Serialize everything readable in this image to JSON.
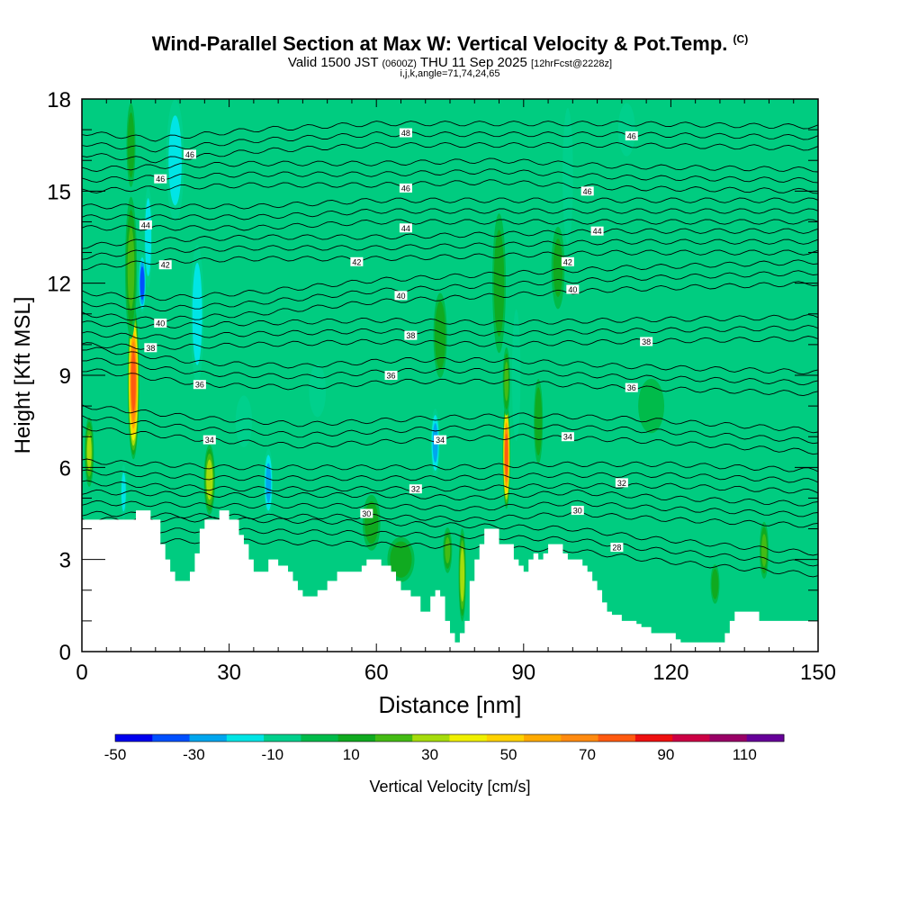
{
  "header": {
    "title": "Wind-Parallel Section at Max W: Vertical Velocity & Pot.Temp.",
    "copyright": "(C)",
    "valid_prefix": "Valid 1500 JST",
    "valid_utc": "(0600Z)",
    "valid_date": "THU 11 Sep 2025",
    "forecast": "[12hrFcst@2228z]",
    "indices": "i,j,k,angle=71,74,24,65"
  },
  "chart_data": {
    "type": "heatmap",
    "xlabel": "Distance [nm]",
    "ylabel": "Height [Kft MSL]",
    "xlim": [
      0,
      150
    ],
    "ylim": [
      0,
      18
    ],
    "x_ticks": [
      0,
      30,
      60,
      90,
      120,
      150
    ],
    "y_ticks": [
      0,
      3,
      6,
      9,
      12,
      15,
      18
    ],
    "terrain_kft": [
      [
        0,
        4.3
      ],
      [
        5,
        4.3
      ],
      [
        10,
        4.3
      ],
      [
        11,
        4.6
      ],
      [
        13,
        4.6
      ],
      [
        14,
        4.3
      ],
      [
        16,
        3.5
      ],
      [
        17,
        3.0
      ],
      [
        18,
        2.6
      ],
      [
        19,
        2.3
      ],
      [
        21,
        2.3
      ],
      [
        22,
        2.6
      ],
      [
        23,
        3.2
      ],
      [
        24,
        4.0
      ],
      [
        25,
        4.3
      ],
      [
        27,
        4.3
      ],
      [
        28,
        4.6
      ],
      [
        29,
        4.6
      ],
      [
        30,
        4.3
      ],
      [
        32,
        3.8
      ],
      [
        33,
        3.5
      ],
      [
        34,
        3.0
      ],
      [
        35,
        2.6
      ],
      [
        37,
        2.6
      ],
      [
        38,
        3.0
      ],
      [
        39,
        3.0
      ],
      [
        40,
        2.8
      ],
      [
        42,
        2.6
      ],
      [
        43,
        2.3
      ],
      [
        44,
        2.0
      ],
      [
        45,
        1.8
      ],
      [
        47,
        1.8
      ],
      [
        48,
        2.0
      ],
      [
        50,
        2.3
      ],
      [
        52,
        2.6
      ],
      [
        55,
        2.6
      ],
      [
        57,
        2.8
      ],
      [
        58,
        3.0
      ],
      [
        60,
        3.0
      ],
      [
        61,
        2.8
      ],
      [
        63,
        2.6
      ],
      [
        64,
        2.3
      ],
      [
        65,
        2.0
      ],
      [
        67,
        1.8
      ],
      [
        69,
        1.3
      ],
      [
        70,
        1.3
      ],
      [
        71,
        1.8
      ],
      [
        72,
        2.0
      ],
      [
        73,
        1.8
      ],
      [
        74,
        1.0
      ],
      [
        75,
        0.6
      ],
      [
        76,
        0.3
      ],
      [
        77,
        0.6
      ],
      [
        78,
        1.0
      ],
      [
        79,
        2.3
      ],
      [
        80,
        3.0
      ],
      [
        81,
        3.5
      ],
      [
        82,
        4.0
      ],
      [
        84,
        4.0
      ],
      [
        85,
        3.5
      ],
      [
        87,
        3.5
      ],
      [
        88,
        3.0
      ],
      [
        89,
        2.8
      ],
      [
        90,
        2.6
      ],
      [
        91,
        3.0
      ],
      [
        92,
        3.2
      ],
      [
        93,
        3.0
      ],
      [
        94,
        3.2
      ],
      [
        95,
        3.5
      ],
      [
        97,
        3.5
      ],
      [
        98,
        3.2
      ],
      [
        99,
        3.0
      ],
      [
        100,
        3.0
      ],
      [
        101,
        3.0
      ],
      [
        102,
        2.8
      ],
      [
        103,
        2.6
      ],
      [
        104,
        2.3
      ],
      [
        105,
        2.0
      ],
      [
        106,
        1.6
      ],
      [
        107,
        1.3
      ],
      [
        108,
        1.2
      ],
      [
        110,
        1.0
      ],
      [
        112,
        1.0
      ],
      [
        113,
        0.9
      ],
      [
        114,
        0.8
      ],
      [
        116,
        0.6
      ],
      [
        120,
        0.6
      ],
      [
        121,
        0.4
      ],
      [
        122,
        0.3
      ],
      [
        124,
        0.3
      ],
      [
        130,
        0.3
      ],
      [
        131,
        0.6
      ],
      [
        132,
        1.0
      ],
      [
        133,
        1.3
      ],
      [
        137,
        1.3
      ],
      [
        138,
        1.0
      ],
      [
        147,
        1.0
      ],
      [
        150,
        1.0
      ]
    ],
    "velocity_features_cms": [
      {
        "name": "updraft-core-west",
        "x": 10.5,
        "y": 8.8,
        "w": 95,
        "rx": 1.2,
        "ry": 2.6
      },
      {
        "name": "updraft-west-upper",
        "x": 10,
        "y": 12.5,
        "w": 30,
        "rx": 1.3,
        "ry": 2.5
      },
      {
        "name": "updraft-west-aloft",
        "x": 10,
        "y": 16.5,
        "w": 25,
        "rx": 1.0,
        "ry": 1.5
      },
      {
        "name": "updraft-core-east",
        "x": 86.5,
        "y": 6.4,
        "w": 95,
        "rx": 0.8,
        "ry": 1.8
      },
      {
        "name": "updraft-east-upper",
        "x": 86.5,
        "y": 8.8,
        "w": 30,
        "rx": 0.8,
        "ry": 1.2
      },
      {
        "name": "updraft-near-26nm",
        "x": 26,
        "y": 5.6,
        "w": 45,
        "rx": 1.2,
        "ry": 1.2
      },
      {
        "name": "updraft-near-2nm",
        "x": 1.5,
        "y": 6.5,
        "w": 40,
        "rx": 1.0,
        "ry": 1.2
      },
      {
        "name": "updraft-near-77nm",
        "x": 77.5,
        "y": 2.5,
        "w": 45,
        "rx": 0.8,
        "ry": 1.6
      },
      {
        "name": "updraft-near-93nm",
        "x": 93,
        "y": 7.5,
        "w": 28,
        "rx": 1.0,
        "ry": 1.5
      },
      {
        "name": "updraft-near-74nm",
        "x": 74.5,
        "y": 3.3,
        "w": 30,
        "rx": 1.0,
        "ry": 0.8
      },
      {
        "name": "updraft-near-59nm",
        "x": 59,
        "y": 4.2,
        "w": 24,
        "rx": 2.0,
        "ry": 1.0
      },
      {
        "name": "updraft-near-65nm",
        "x": 65,
        "y": 3.0,
        "w": 28,
        "rx": 3.0,
        "ry": 0.8
      },
      {
        "name": "updraft-near-73nm-aloft",
        "x": 73,
        "y": 10.3,
        "w": 28,
        "rx": 1.5,
        "ry": 1.5
      },
      {
        "name": "updraft-near-85nm-aloft",
        "x": 85,
        "y": 12.0,
        "w": 24,
        "rx": 1.5,
        "ry": 2.5
      },
      {
        "name": "updraft-near-139nm",
        "x": 139,
        "y": 3.3,
        "w": 30,
        "rx": 1.0,
        "ry": 1.0
      },
      {
        "name": "updraft-near-129nm",
        "x": 129,
        "y": 2.2,
        "w": 25,
        "rx": 1.0,
        "ry": 0.7
      },
      {
        "name": "updraft-near-97nm",
        "x": 97,
        "y": 12.5,
        "w": 20,
        "rx": 1.5,
        "ry": 1.5
      },
      {
        "name": "updraft-near-116nm",
        "x": 116,
        "y": 8.0,
        "w": 18,
        "rx": 3.0,
        "ry": 1.0
      },
      {
        "name": "downdraft-near-12nm",
        "x": 12.3,
        "y": 12.0,
        "w": -45,
        "rx": 0.8,
        "ry": 1.0
      },
      {
        "name": "downdraft-near-13nm",
        "x": 13.5,
        "y": 13.5,
        "w": -25,
        "rx": 0.9,
        "ry": 1.8
      },
      {
        "name": "downdraft-near-19nm",
        "x": 19,
        "y": 16.0,
        "w": -22,
        "rx": 2.0,
        "ry": 2.2
      },
      {
        "name": "downdraft-near-23nm",
        "x": 23.5,
        "y": 11.0,
        "w": -22,
        "rx": 1.5,
        "ry": 2.5
      },
      {
        "name": "downdraft-near-38nm",
        "x": 38,
        "y": 5.5,
        "w": -30,
        "rx": 1.0,
        "ry": 1.2
      },
      {
        "name": "downdraft-near-72nm",
        "x": 72,
        "y": 6.8,
        "w": -30,
        "rx": 1.0,
        "ry": 1.2
      },
      {
        "name": "downdraft-near-9nm",
        "x": 8.5,
        "y": 5.2,
        "w": -20,
        "rx": 0.7,
        "ry": 1.0
      },
      {
        "name": "downdraft-near-99nm",
        "x": 99,
        "y": 15.5,
        "w": -18,
        "rx": 1.2,
        "ry": 2.5
      },
      {
        "name": "downdraft-near-111nm",
        "x": 111,
        "y": 17.0,
        "w": -15,
        "rx": 2.0,
        "ry": 1.0
      },
      {
        "name": "downdraft-near-48nm",
        "x": 48,
        "y": 8.5,
        "w": -14,
        "rx": 2.0,
        "ry": 1.0
      },
      {
        "name": "downdraft-near-88nm",
        "x": 88.5,
        "y": 9.0,
        "w": -14,
        "rx": 1.0,
        "ry": 2.5
      },
      {
        "name": "downdraft-near-33nm",
        "x": 33,
        "y": 7.5,
        "w": -12,
        "rx": 2.0,
        "ry": 1.0
      }
    ],
    "theta_contours_K": [
      {
        "value": 28,
        "x": [
          30,
          60,
          80,
          100,
          115,
          135,
          150
        ],
        "y": [
          3.6,
          3.5,
          3.4,
          3.3,
          3.0,
          2.7,
          2.5
        ]
      },
      {
        "value": 30,
        "x": [
          0,
          30,
          60,
          80,
          100,
          120,
          150
        ],
        "y": [
          4.5,
          4.4,
          4.4,
          4.3,
          4.5,
          4.3,
          4.1
        ]
      },
      {
        "value": 32,
        "x": [
          0,
          30,
          60,
          75,
          95,
          120,
          150
        ],
        "y": [
          5.5,
          5.3,
          5.3,
          5.3,
          5.4,
          5.4,
          5.2
        ]
      },
      {
        "value": 34,
        "x": [
          0,
          25,
          45,
          70,
          90,
          110,
          130,
          150
        ],
        "y": [
          7.3,
          6.9,
          6.7,
          6.9,
          7.0,
          6.9,
          6.7,
          6.5
        ]
      },
      {
        "value": 36,
        "x": [
          0,
          25,
          45,
          65,
          85,
          110,
          130,
          150
        ],
        "y": [
          9.2,
          8.7,
          8.6,
          8.8,
          8.8,
          8.6,
          8.5,
          8.4
        ]
      },
      {
        "value": 38,
        "x": [
          0,
          15,
          35,
          60,
          85,
          110,
          150
        ],
        "y": [
          10.0,
          9.9,
          10.0,
          10.1,
          10.0,
          10.1,
          10.2
        ]
      },
      {
        "value": 40,
        "x": [
          0,
          15,
          35,
          60,
          85,
          110,
          150
        ],
        "y": [
          11.0,
          10.8,
          11.0,
          11.4,
          11.6,
          11.8,
          12.0
        ]
      },
      {
        "value": 42,
        "x": [
          0,
          15,
          35,
          60,
          85,
          110,
          150
        ],
        "y": [
          12.5,
          12.7,
          12.8,
          12.8,
          12.9,
          13.0,
          13.0
        ]
      },
      {
        "value": 44,
        "x": [
          0,
          15,
          35,
          60,
          85,
          110,
          150
        ],
        "y": [
          13.8,
          13.8,
          13.8,
          14.0,
          14.0,
          14.0,
          14.0
        ]
      },
      {
        "value": 46,
        "x": [
          0,
          15,
          35,
          60,
          85,
          110,
          150
        ],
        "y": [
          15.0,
          15.1,
          15.2,
          15.2,
          15.3,
          15.1,
          15.0
        ]
      },
      {
        "value": 48,
        "x": [
          0,
          15,
          35,
          60,
          85,
          110,
          150
        ],
        "y": [
          16.2,
          16.0,
          16.3,
          16.5,
          16.5,
          16.5,
          16.4
        ]
      }
    ],
    "extra_contour_offsets_kft": [
      0.35,
      0.7
    ],
    "contour_labels": [
      {
        "text": "48",
        "x": 66,
        "y": 16.9
      },
      {
        "text": "46",
        "x": 22,
        "y": 16.2
      },
      {
        "text": "46",
        "x": 16,
        "y": 15.4
      },
      {
        "text": "46",
        "x": 66,
        "y": 15.1
      },
      {
        "text": "46",
        "x": 103,
        "y": 15.0
      },
      {
        "text": "46",
        "x": 112,
        "y": 16.8
      },
      {
        "text": "44",
        "x": 13,
        "y": 13.9
      },
      {
        "text": "44",
        "x": 66,
        "y": 13.8
      },
      {
        "text": "44",
        "x": 105,
        "y": 13.7
      },
      {
        "text": "42",
        "x": 17,
        "y": 12.6
      },
      {
        "text": "42",
        "x": 56,
        "y": 12.7
      },
      {
        "text": "42",
        "x": 99,
        "y": 12.7
      },
      {
        "text": "40",
        "x": 16,
        "y": 10.7
      },
      {
        "text": "40",
        "x": 65,
        "y": 11.6
      },
      {
        "text": "40",
        "x": 100,
        "y": 11.8
      },
      {
        "text": "38",
        "x": 14,
        "y": 9.9
      },
      {
        "text": "38",
        "x": 67,
        "y": 10.3
      },
      {
        "text": "38",
        "x": 115,
        "y": 10.1
      },
      {
        "text": "36",
        "x": 24,
        "y": 8.7
      },
      {
        "text": "36",
        "x": 63,
        "y": 9.0
      },
      {
        "text": "36",
        "x": 112,
        "y": 8.6
      },
      {
        "text": "34",
        "x": 26,
        "y": 6.9
      },
      {
        "text": "34",
        "x": 73,
        "y": 6.9
      },
      {
        "text": "34",
        "x": 99,
        "y": 7.0
      },
      {
        "text": "32",
        "x": 68,
        "y": 5.3
      },
      {
        "text": "32",
        "x": 110,
        "y": 5.5
      },
      {
        "text": "30",
        "x": 58,
        "y": 4.5
      },
      {
        "text": "30",
        "x": 101,
        "y": 4.6
      },
      {
        "text": "28",
        "x": 109,
        "y": 3.4
      }
    ],
    "colorbar": {
      "label": "Vertical Velocity [cm/s]",
      "levels": [
        -50,
        -40,
        -30,
        -20,
        -10,
        0,
        10,
        20,
        30,
        40,
        50,
        60,
        70,
        80,
        90,
        100,
        110,
        120
      ],
      "tick_values": [
        "-50",
        "-30",
        "-10",
        "10",
        "30",
        "50",
        "70",
        "90",
        "110"
      ],
      "colors": [
        "#0000ee",
        "#0050ff",
        "#00a6ee",
        "#00e5e5",
        "#00d08c",
        "#00bb4a",
        "#10aa20",
        "#44bb14",
        "#a6dc0c",
        "#f0f000",
        "#ffd200",
        "#ffaa00",
        "#ff8a10",
        "#ff5a10",
        "#ee1010",
        "#cc0044",
        "#990066",
        "#660099"
      ],
      "background_color": "#00cc80",
      "terrain_color": "#ffffff"
    }
  }
}
